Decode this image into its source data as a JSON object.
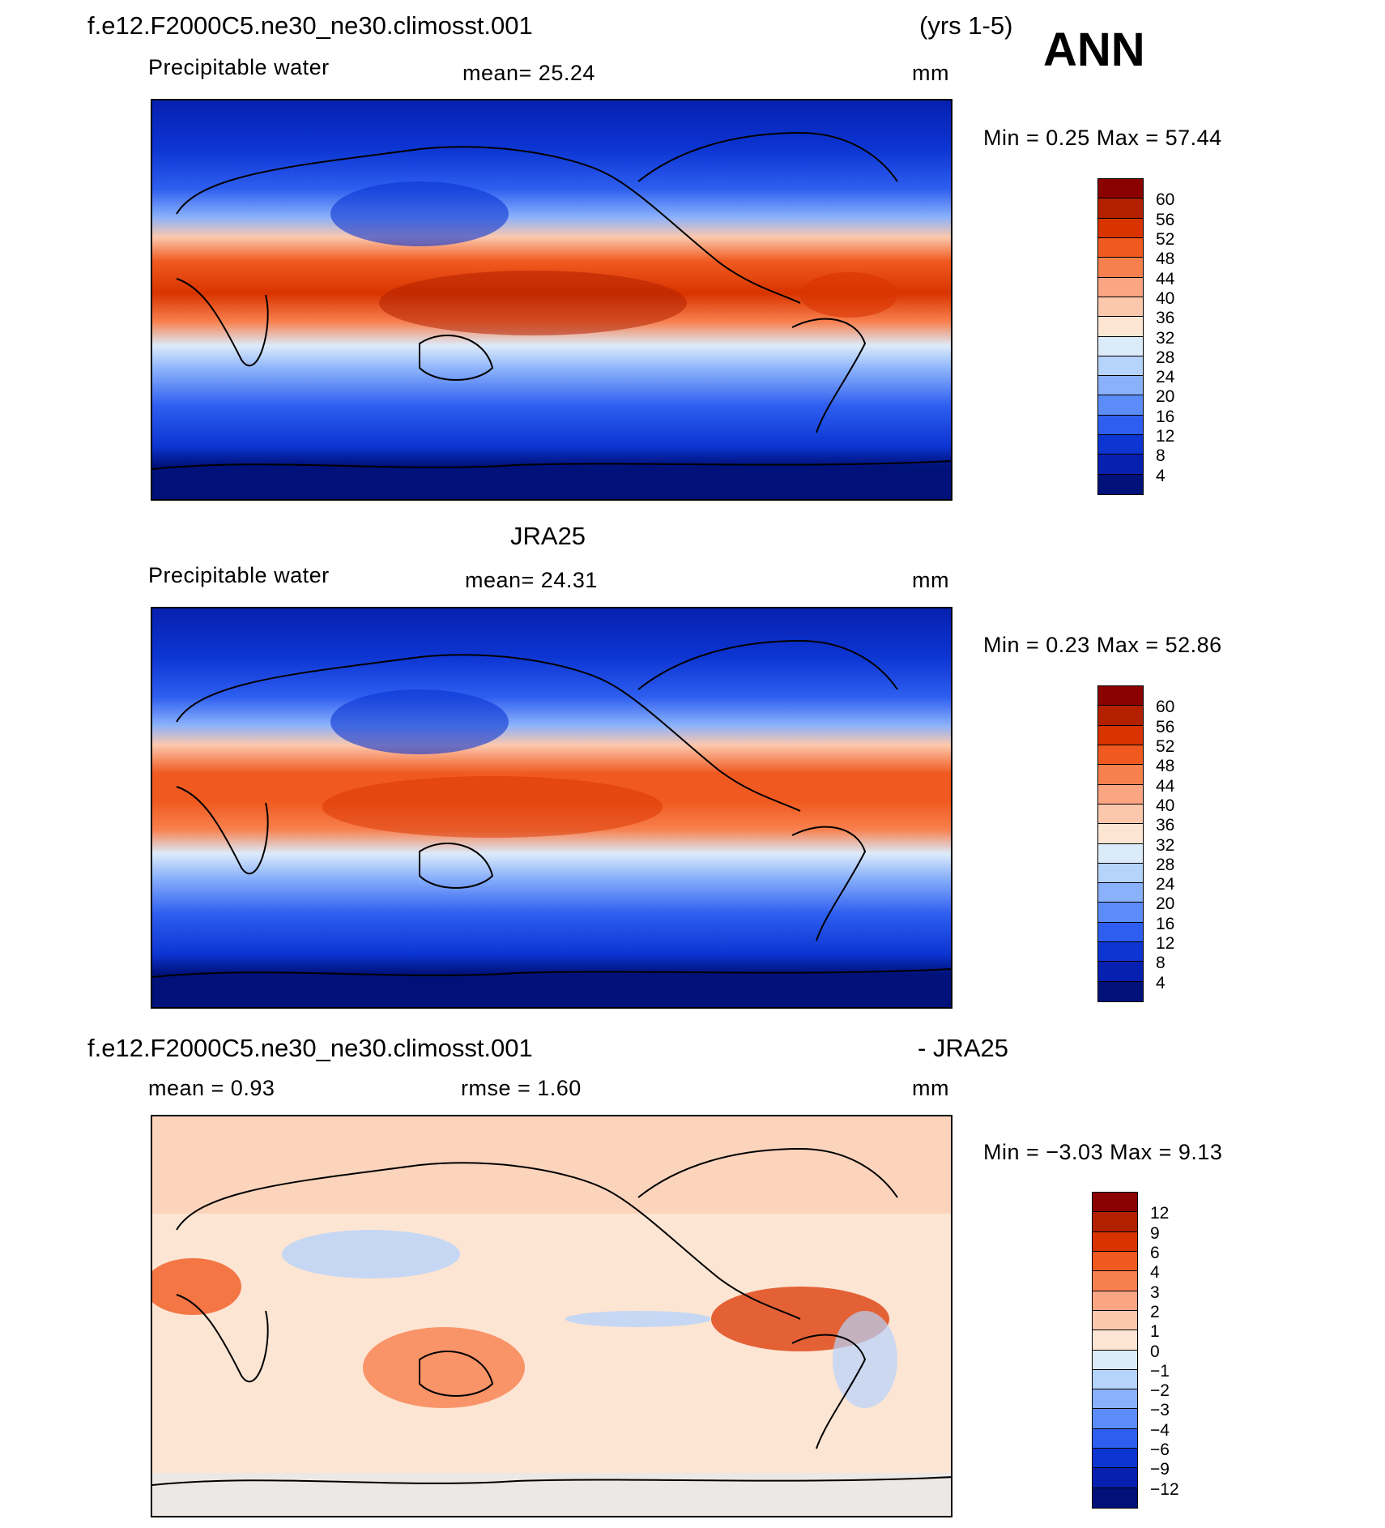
{
  "header": {
    "case_name": "f.e12.F2000C5.ne30_ne30.climosst.001",
    "years": "(yrs 1-5)",
    "season": "ANN"
  },
  "panels": [
    {
      "id": "model",
      "variable": "Precipitable water",
      "mean_text": "mean=   25.24",
      "units": "mm",
      "min_max_text": "Min  =     0.25  Max  =    57.44",
      "colorbar": {
        "labels": [
          "60",
          "56",
          "52",
          "48",
          "44",
          "40",
          "36",
          "32",
          "28",
          "24",
          "20",
          "16",
          "12",
          "8",
          "4"
        ],
        "colors": [
          "#8b0000",
          "#b22000",
          "#d93400",
          "#f05a20",
          "#f8804e",
          "#fba583",
          "#fcc8ad",
          "#fde5d3",
          "#dcebfa",
          "#b6d3fb",
          "#8ab1fb",
          "#5b8cf9",
          "#2e5ef0",
          "#0c35d2",
          "#0720b0",
          "#00117a"
        ]
      }
    },
    {
      "id": "obs",
      "title": "JRA25",
      "variable": "Precipitable water",
      "mean_text": "mean=   24.31",
      "units": "mm",
      "min_max_text": "Min  =     0.23  Max  =    52.86",
      "colorbar": {
        "labels": [
          "60",
          "56",
          "52",
          "48",
          "44",
          "40",
          "36",
          "32",
          "28",
          "24",
          "20",
          "16",
          "12",
          "8",
          "4"
        ],
        "colors": [
          "#8b0000",
          "#b22000",
          "#d93400",
          "#f05a20",
          "#f8804e",
          "#fba583",
          "#fcc8ad",
          "#fde5d3",
          "#dcebfa",
          "#b6d3fb",
          "#8ab1fb",
          "#5b8cf9",
          "#2e5ef0",
          "#0c35d2",
          "#0720b0",
          "#00117a"
        ]
      }
    },
    {
      "id": "diff",
      "title_left": "f.e12.F2000C5.ne30_ne30.climosst.001",
      "title_right": "- JRA25",
      "mean_text": "mean  =     0.93",
      "rmse_text": "rmse  =     1.60",
      "units": "mm",
      "min_max_text": "Min  =   −3.03  Max  =      9.13",
      "colorbar": {
        "labels": [
          "12",
          "9",
          "6",
          "4",
          "3",
          "2",
          "1",
          "0",
          "−1",
          "−2",
          "−3",
          "−4",
          "−6",
          "−9",
          "−12"
        ],
        "colors": [
          "#8b0000",
          "#b22000",
          "#d93400",
          "#f05a20",
          "#f8804e",
          "#fba583",
          "#fcc8ad",
          "#fde5d3",
          "#dcebfa",
          "#b6d3fb",
          "#8ab1fb",
          "#5b8cf9",
          "#2e5ef0",
          "#0c35d2",
          "#0720b0",
          "#00117a"
        ]
      }
    }
  ]
}
